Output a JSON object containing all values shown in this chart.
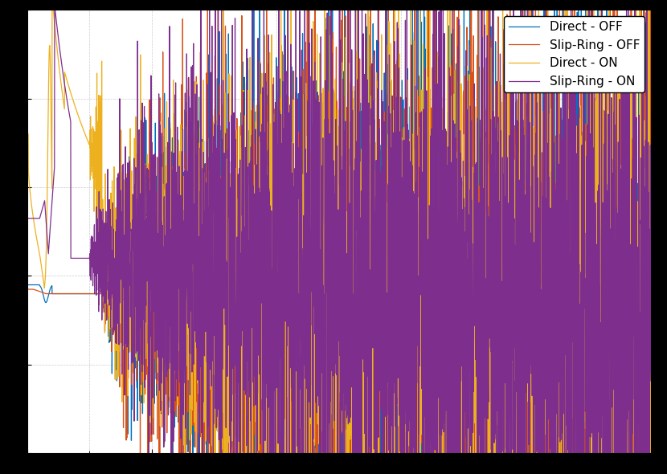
{
  "colors": {
    "direct_off": "#0072bd",
    "slipring_off": "#d95319",
    "direct_on": "#edb120",
    "slipring_on": "#7e2f8e"
  },
  "legend_labels": [
    "Direct - OFF",
    "Slip-Ring - OFF",
    "Direct - ON",
    "Slip-Ring - ON"
  ],
  "background_color": "#ffffff",
  "grid_color": "#cccccc",
  "linewidth": 0.9,
  "fig_facecolor": "#000000"
}
